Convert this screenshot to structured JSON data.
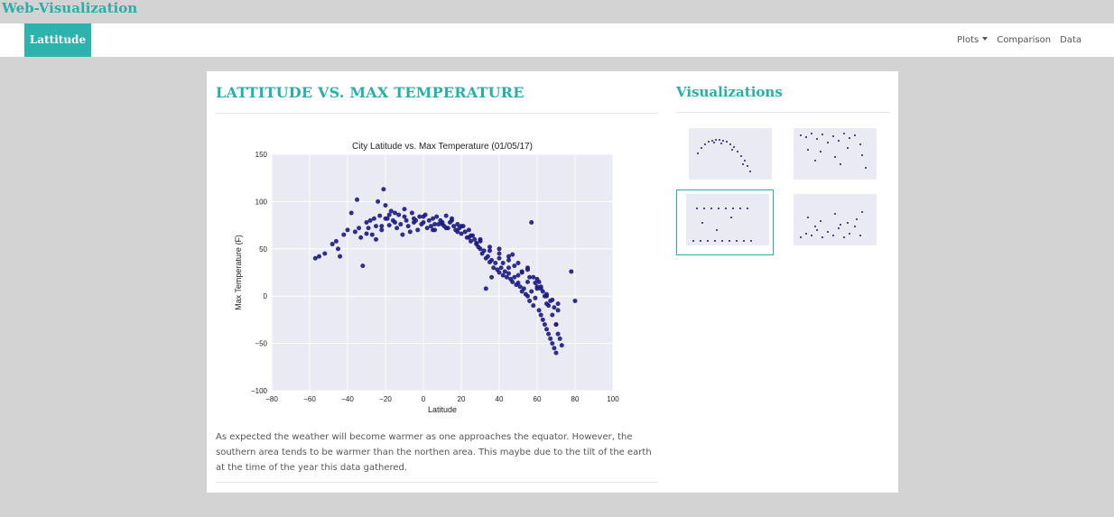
{
  "site": {
    "title": "Web-Visualization"
  },
  "navbar": {
    "brand": "Lattitude",
    "links": [
      {
        "label": "Plots",
        "dropdown": true
      },
      {
        "label": "Comparison"
      },
      {
        "label": "Data"
      }
    ]
  },
  "main": {
    "heading": "LATTITUDE VS. MAX TEMPERATURE",
    "description": "As expected the weather will become warmer as one approaches the equator. However, the southern area tends to be warmer than the northen area. This maybe due to the tilt of the earth at the time of the year this data gathered."
  },
  "sidebar": {
    "heading": "Visualizations"
  },
  "colors": {
    "accent": "#2aafa8",
    "marker": "#1a1a80",
    "plot_bg": "#eaeaf2"
  },
  "chart_data": {
    "type": "scatter",
    "title": "City Latitude vs. Max Temperature (01/05/17)",
    "xlabel": "Latitude",
    "ylabel": "Max Temperature (F)",
    "xlim": [
      -80,
      100
    ],
    "ylim": [
      -100,
      150
    ],
    "xticks": [
      -80,
      -60,
      -40,
      -20,
      0,
      20,
      40,
      60,
      80,
      100
    ],
    "yticks": [
      -100,
      -50,
      0,
      50,
      100,
      150
    ],
    "xtick_labels": [
      "−80",
      "−60",
      "−40",
      "−20",
      "0",
      "20",
      "40",
      "60",
      "80",
      "100"
    ],
    "ytick_labels": [
      "−100",
      "−50",
      "0",
      "50",
      "100",
      "150"
    ],
    "grid": true,
    "x": [
      -57,
      -55,
      -52,
      -48,
      -46,
      -45,
      -44,
      -42,
      -40,
      -38,
      -36,
      -35,
      -33,
      -32,
      -30,
      -29,
      -28,
      -27,
      -26,
      -25,
      -24,
      -23,
      -22,
      -21,
      -20,
      -19,
      -18,
      -17,
      -16,
      -15,
      -14,
      -13,
      -12,
      -11,
      -10,
      -9,
      -8,
      -7,
      -6,
      -5,
      -4,
      -3,
      -2,
      -1,
      0,
      1,
      2,
      3,
      4,
      5,
      6,
      7,
      8,
      9,
      10,
      11,
      12,
      13,
      14,
      15,
      16,
      17,
      18,
      19,
      20,
      21,
      22,
      23,
      24,
      25,
      26,
      27,
      28,
      29,
      30,
      31,
      32,
      33,
      34,
      35,
      36,
      37,
      38,
      39,
      40,
      41,
      42,
      43,
      44,
      45,
      46,
      47,
      48,
      49,
      50,
      51,
      52,
      53,
      54,
      55,
      56,
      57,
      58,
      59,
      60,
      61,
      62,
      63,
      64,
      65,
      66,
      67,
      68,
      69,
      70,
      71,
      72,
      73,
      -34,
      -30,
      -22,
      -25,
      -18,
      -10,
      -5,
      0,
      5,
      10,
      15,
      20,
      25,
      30,
      35,
      40,
      45,
      50,
      55,
      60,
      65,
      70,
      40,
      45,
      50,
      55,
      60,
      62,
      64,
      66,
      68,
      70,
      52,
      58,
      63,
      67,
      71,
      55,
      61,
      65,
      69,
      -20,
      -15,
      30,
      35,
      40,
      45,
      48,
      52,
      56,
      59,
      62,
      65,
      68,
      71,
      57,
      78,
      80,
      33,
      36,
      42,
      47,
      28,
      24,
      18,
      12,
      6
    ],
    "y": [
      40,
      42,
      45,
      55,
      58,
      50,
      42,
      65,
      70,
      88,
      68,
      102,
      62,
      32,
      78,
      72,
      80,
      65,
      82,
      74,
      100,
      85,
      70,
      113,
      96,
      82,
      75,
      90,
      80,
      78,
      72,
      86,
      76,
      65,
      84,
      80,
      74,
      68,
      88,
      82,
      80,
      70,
      84,
      76,
      78,
      86,
      72,
      80,
      74,
      82,
      70,
      84,
      76,
      80,
      78,
      74,
      85,
      72,
      78,
      80,
      74,
      70,
      76,
      72,
      66,
      74,
      68,
      62,
      70,
      58,
      64,
      60,
      56,
      52,
      50,
      45,
      48,
      40,
      42,
      36,
      38,
      30,
      35,
      28,
      25,
      30,
      22,
      26,
      20,
      24,
      18,
      15,
      20,
      12,
      14,
      10,
      5,
      8,
      2,
      0,
      -5,
      5,
      -10,
      -2,
      10,
      -15,
      -20,
      -25,
      -30,
      -35,
      -40,
      -45,
      -50,
      -55,
      -60,
      -40,
      -45,
      -52,
      72,
      66,
      74,
      60,
      86,
      92,
      78,
      84,
      70,
      76,
      82,
      74,
      64,
      58,
      48,
      40,
      30,
      22,
      15,
      8,
      -8,
      -30,
      50,
      42,
      35,
      28,
      18,
      10,
      0,
      -10,
      -20,
      -30,
      25,
      20,
      5,
      -5,
      -15,
      30,
      15,
      0,
      -12,
      82,
      88,
      60,
      52,
      45,
      38,
      32,
      26,
      20,
      14,
      8,
      2,
      -4,
      -8,
      78,
      26,
      -5,
      8,
      20,
      35,
      44,
      55,
      62,
      68,
      72,
      76
    ]
  }
}
